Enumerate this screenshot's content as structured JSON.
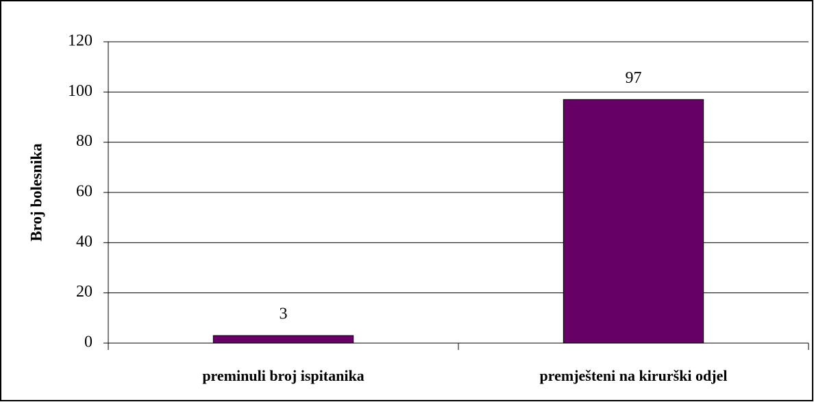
{
  "chart_data": {
    "type": "bar",
    "y_label": "Broj bolesnika",
    "categories": [
      "preminuli broj ispitanika",
      "premješteni na kirurški odjel"
    ],
    "values": [
      3,
      97
    ],
    "color": "#660066",
    "ylim": [
      0,
      120
    ],
    "yticks": [
      0,
      20,
      40,
      60,
      80,
      100,
      120
    ],
    "grid": true
  }
}
